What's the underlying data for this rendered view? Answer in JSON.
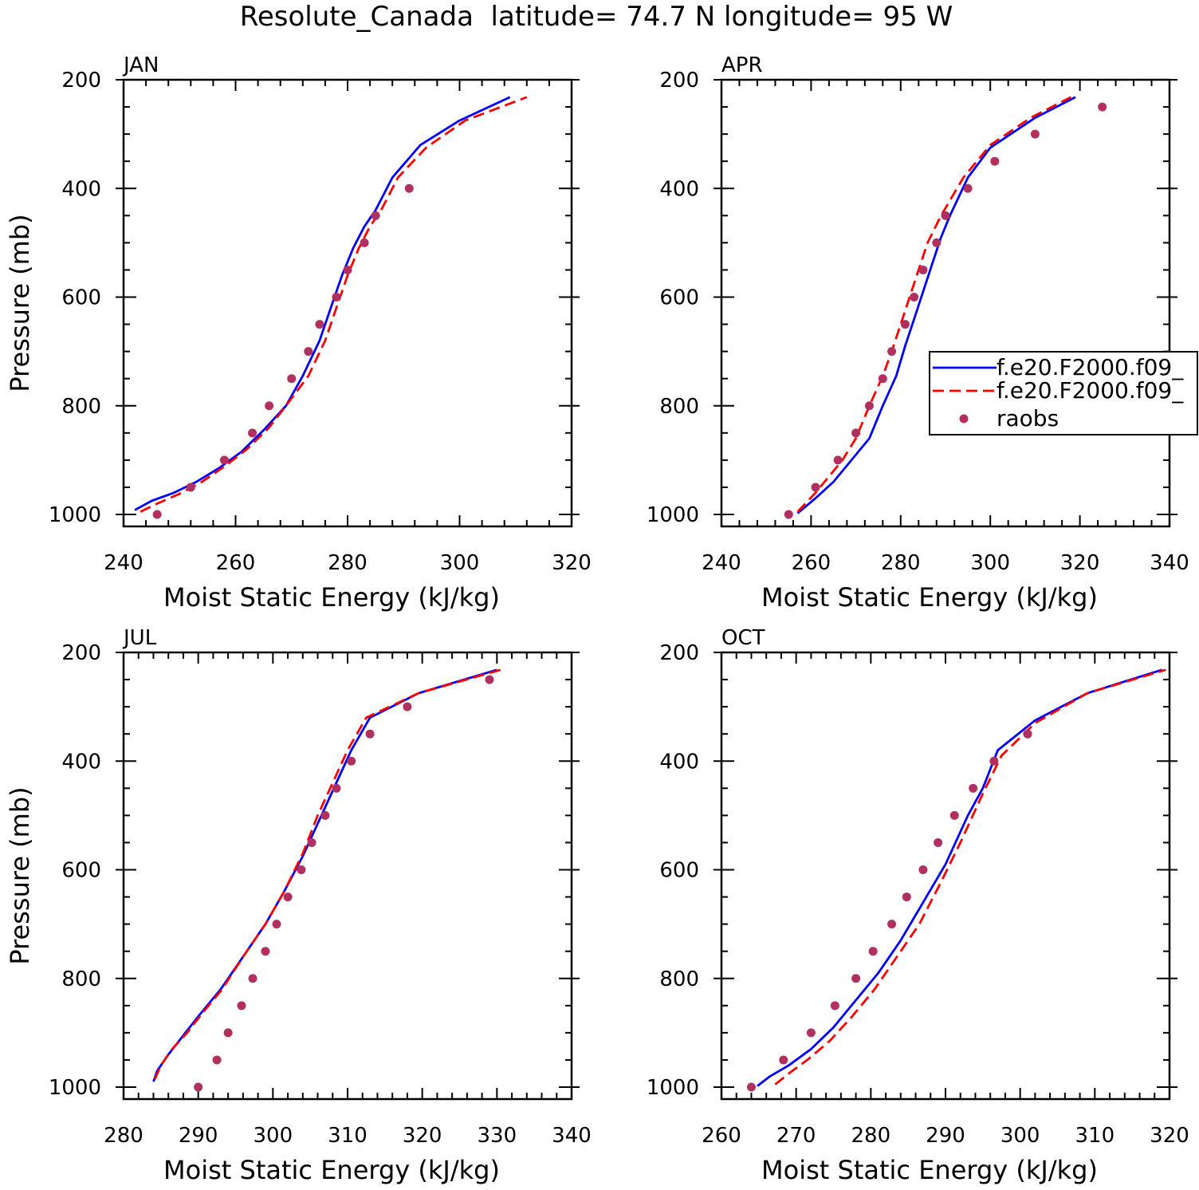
{
  "figure": {
    "title": "Resolute_Canada  latitude= 74.7 N longitude= 95 W"
  },
  "legend": {
    "placement": "right of APR panel",
    "entries": [
      {
        "label": "f.e20.F2000.f09_",
        "style": "solid",
        "color": "#0000ff"
      },
      {
        "label": "f.e20.F2000.f09_",
        "style": "dashed",
        "color": "#ff0000"
      },
      {
        "label": "raobs",
        "style": "marker",
        "color": "#b03060"
      }
    ]
  },
  "chart_data": [
    {
      "type": "line",
      "title": "JAN",
      "xlabel": "Moist Static Energy (kJ/kg)",
      "ylabel": "Pressure (mb)",
      "xlim": [
        240,
        320
      ],
      "ylim": [
        1000,
        200
      ],
      "xticks": [
        "240",
        "260",
        "280",
        "300",
        "320"
      ],
      "yticks": [
        "200",
        "400",
        "600",
        "800",
        "1000"
      ],
      "series": [
        {
          "name": "f.e20.F2000.f09_",
          "style": "solid",
          "color": "#0000ff",
          "points": [
            [
              242,
              992
            ],
            [
              245,
              975
            ],
            [
              249,
              960
            ],
            [
              253,
              940
            ],
            [
              257,
              915
            ],
            [
              261,
              885
            ],
            [
              265,
              845
            ],
            [
              269,
              800
            ],
            [
              272,
              745
            ],
            [
              275,
              680
            ],
            [
              277,
              620
            ],
            [
              279,
              560
            ],
            [
              281,
              510
            ],
            [
              283,
              470
            ],
            [
              285,
              440
            ],
            [
              288,
              380
            ],
            [
              293,
              320
            ],
            [
              300,
              275
            ],
            [
              309,
              232
            ]
          ]
        },
        {
          "name": "f.e20.F2000.f09_",
          "style": "dashed",
          "color": "#ff0000",
          "points": [
            [
              243,
              995
            ],
            [
              246,
              980
            ],
            [
              250,
              962
            ],
            [
              254,
              940
            ],
            [
              258,
              912
            ],
            [
              262,
              880
            ],
            [
              266,
              840
            ],
            [
              269,
              800
            ],
            [
              273,
              745
            ],
            [
              276,
              680
            ],
            [
              278,
              620
            ],
            [
              280,
              560
            ],
            [
              282,
              510
            ],
            [
              284,
              470
            ],
            [
              286,
              440
            ],
            [
              289,
              380
            ],
            [
              294,
              325
            ],
            [
              301,
              275
            ],
            [
              312,
              232
            ]
          ]
        },
        {
          "name": "raobs",
          "style": "marker",
          "color": "#b03060",
          "points": [
            [
              246,
              1000
            ],
            [
              252,
              950
            ],
            [
              258,
              900
            ],
            [
              263,
              850
            ],
            [
              266,
              800
            ],
            [
              270,
              750
            ],
            [
              273,
              700
            ],
            [
              275,
              650
            ],
            [
              278,
              600
            ],
            [
              280,
              550
            ],
            [
              283,
              500
            ],
            [
              285,
              450
            ],
            [
              291,
              400
            ]
          ]
        }
      ]
    },
    {
      "type": "line",
      "title": "APR",
      "xlabel": "Moist Static Energy (kJ/kg)",
      "ylabel": "",
      "xlim": [
        240,
        340
      ],
      "ylim": [
        1000,
        200
      ],
      "xticks": [
        "240",
        "260",
        "280",
        "300",
        "320",
        "340"
      ],
      "yticks": [
        "200",
        "400",
        "600",
        "800",
        "1000"
      ],
      "series": [
        {
          "name": "f.e20.F2000.f09_",
          "style": "solid",
          "color": "#0000ff",
          "points": [
            [
              257,
              998
            ],
            [
              261,
              970
            ],
            [
              265,
              940
            ],
            [
              269,
              900
            ],
            [
              273,
              860
            ],
            [
              276,
              800
            ],
            [
              279,
              745
            ],
            [
              281,
              690
            ],
            [
              283,
              640
            ],
            [
              285,
              590
            ],
            [
              287,
              540
            ],
            [
              289,
              490
            ],
            [
              291,
              450
            ],
            [
              295,
              380
            ],
            [
              300,
              325
            ],
            [
              310,
              270
            ],
            [
              319,
              232
            ]
          ]
        },
        {
          "name": "f.e20.F2000.f09_",
          "style": "dashed",
          "color": "#ff0000",
          "points": [
            [
              257,
              995
            ],
            [
              261,
              960
            ],
            [
              264,
              930
            ],
            [
              267,
              900
            ],
            [
              270,
              860
            ],
            [
              273,
              800
            ],
            [
              276,
              745
            ],
            [
              278,
              700
            ],
            [
              280,
              650
            ],
            [
              282,
              600
            ],
            [
              284,
              550
            ],
            [
              286,
              500
            ],
            [
              289,
              450
            ],
            [
              294,
              380
            ],
            [
              300,
              320
            ],
            [
              309,
              270
            ],
            [
              318,
              232
            ]
          ]
        },
        {
          "name": "raobs",
          "style": "marker",
          "color": "#b03060",
          "points": [
            [
              255,
              1000
            ],
            [
              261,
              950
            ],
            [
              266,
              900
            ],
            [
              270,
              850
            ],
            [
              273,
              800
            ],
            [
              276,
              750
            ],
            [
              278,
              700
            ],
            [
              281,
              650
            ],
            [
              283,
              600
            ],
            [
              285,
              550
            ],
            [
              288,
              500
            ],
            [
              290,
              450
            ],
            [
              295,
              400
            ],
            [
              301,
              350
            ],
            [
              310,
              300
            ],
            [
              325,
              250
            ]
          ]
        }
      ]
    },
    {
      "type": "line",
      "title": "JUL",
      "xlabel": "Moist Static Energy (kJ/kg)",
      "ylabel": "Pressure (mb)",
      "xlim": [
        280,
        340
      ],
      "ylim": [
        1000,
        200
      ],
      "xticks": [
        "280",
        "290",
        "300",
        "310",
        "320",
        "330",
        "340"
      ],
      "yticks": [
        "200",
        "400",
        "600",
        "800",
        "1000"
      ],
      "series": [
        {
          "name": "f.e20.F2000.f09_",
          "style": "solid",
          "color": "#0000ff",
          "points": [
            [
              284,
              990
            ],
            [
              284.5,
              970
            ],
            [
              286,
              940
            ],
            [
              288,
              905
            ],
            [
              290,
              870
            ],
            [
              293,
              820
            ],
            [
              296,
              760
            ],
            [
              299,
              700
            ],
            [
              301.5,
              640
            ],
            [
              304,
              575
            ],
            [
              306.5,
              500
            ],
            [
              308.5,
              440
            ],
            [
              310.5,
              380
            ],
            [
              313,
              320
            ],
            [
              319.5,
              275
            ],
            [
              330,
              232
            ]
          ]
        },
        {
          "name": "f.e20.F2000.f09_",
          "style": "dashed",
          "color": "#ff0000",
          "points": [
            [
              284.2,
              985
            ],
            [
              285,
              960
            ],
            [
              286.5,
              930
            ],
            [
              288.5,
              900
            ],
            [
              290.5,
              865
            ],
            [
              293.2,
              820
            ],
            [
              296,
              760
            ],
            [
              299,
              700
            ],
            [
              301.5,
              640
            ],
            [
              304,
              570
            ],
            [
              306,
              500
            ],
            [
              308,
              440
            ],
            [
              310,
              380
            ],
            [
              312.5,
              320
            ],
            [
              319.5,
              275
            ],
            [
              330.5,
              232
            ]
          ]
        },
        {
          "name": "raobs",
          "style": "marker",
          "color": "#b03060",
          "points": [
            [
              290,
              1000
            ],
            [
              292.5,
              950
            ],
            [
              294,
              900
            ],
            [
              295.8,
              850
            ],
            [
              297.3,
              800
            ],
            [
              299,
              750
            ],
            [
              300.5,
              700
            ],
            [
              302,
              650
            ],
            [
              303.8,
              600
            ],
            [
              305.2,
              550
            ],
            [
              307,
              500
            ],
            [
              308.5,
              450
            ],
            [
              310.5,
              400
            ],
            [
              313,
              350
            ],
            [
              318,
              300
            ],
            [
              329,
              250
            ]
          ]
        }
      ]
    },
    {
      "type": "line",
      "title": "OCT",
      "xlabel": "Moist Static Energy (kJ/kg)",
      "ylabel": "",
      "xlim": [
        260,
        320
      ],
      "ylim": [
        1000,
        200
      ],
      "xticks": [
        "260",
        "270",
        "280",
        "290",
        "300",
        "310",
        "320"
      ],
      "yticks": [
        "200",
        "400",
        "600",
        "800",
        "1000"
      ],
      "series": [
        {
          "name": "f.e20.F2000.f09_",
          "style": "solid",
          "color": "#0000ff",
          "points": [
            [
              264.8,
              998
            ],
            [
              266.5,
              980
            ],
            [
              269,
              960
            ],
            [
              272,
              930
            ],
            [
              275,
              890
            ],
            [
              278,
              840
            ],
            [
              281,
              790
            ],
            [
              284,
              730
            ],
            [
              287,
              660
            ],
            [
              290,
              590
            ],
            [
              293,
              500
            ],
            [
              295,
              450
            ],
            [
              297,
              380
            ],
            [
              302,
              325
            ],
            [
              309,
              275
            ],
            [
              319,
              232
            ]
          ]
        },
        {
          "name": "f.e20.F2000.f09_",
          "style": "dashed",
          "color": "#ff0000",
          "points": [
            [
              267.2,
              995
            ],
            [
              269,
              975
            ],
            [
              271.5,
              950
            ],
            [
              274.5,
              915
            ],
            [
              277.5,
              870
            ],
            [
              280.5,
              820
            ],
            [
              283.5,
              760
            ],
            [
              286.5,
              700
            ],
            [
              289.5,
              620
            ],
            [
              292,
              550
            ],
            [
              295,
              460
            ],
            [
              297.5,
              390
            ],
            [
              302,
              330
            ],
            [
              309,
              275
            ],
            [
              319.5,
              232
            ]
          ]
        },
        {
          "name": "raobs",
          "style": "marker",
          "color": "#b03060",
          "points": [
            [
              264,
              1000
            ],
            [
              268.3,
              950
            ],
            [
              272,
              900
            ],
            [
              275.2,
              850
            ],
            [
              278,
              800
            ],
            [
              280.3,
              750
            ],
            [
              282.8,
              700
            ],
            [
              284.8,
              650
            ],
            [
              287,
              600
            ],
            [
              289,
              550
            ],
            [
              291.2,
              500
            ],
            [
              293.7,
              450
            ],
            [
              296.5,
              400
            ],
            [
              301,
              350
            ]
          ]
        }
      ]
    }
  ]
}
